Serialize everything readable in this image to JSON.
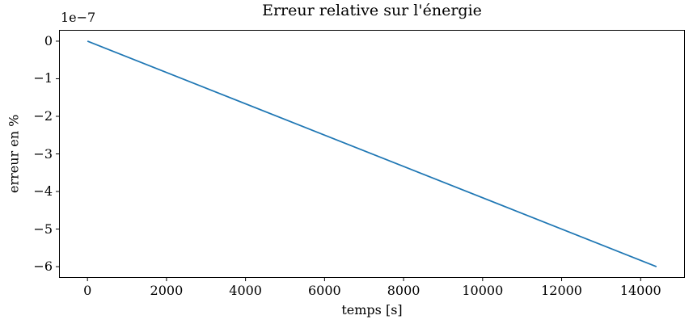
{
  "figure": {
    "background": "#ffffff",
    "text_color": "#000000",
    "spine_color": "#000000"
  },
  "chart_data": {
    "type": "line",
    "title": "Erreur relative sur l'énergie",
    "xlabel": "temps [s]",
    "ylabel": "erreur en %",
    "y_offset_label": "1e−7",
    "y_scale_factor": 1e-07,
    "grid": false,
    "legend": null,
    "xlim": [
      -720,
      15120
    ],
    "ylim": [
      -6.3e-07,
      3e-08
    ],
    "x_ticks": {
      "values": [
        0,
        2000,
        4000,
        6000,
        8000,
        10000,
        12000,
        14000
      ],
      "labels": [
        "0",
        "2000",
        "4000",
        "6000",
        "8000",
        "10000",
        "12000",
        "14000"
      ]
    },
    "y_ticks": {
      "values": [
        0,
        -1e-07,
        -2e-07,
        -3e-07,
        -4e-07,
        -5e-07,
        -6e-07
      ],
      "labels": [
        "0",
        "−1",
        "−2",
        "−3",
        "−4",
        "−5",
        "−6"
      ]
    },
    "series": [
      {
        "color": "#1f77b4",
        "line_width": 1.8,
        "x": [
          0,
          14400
        ],
        "y": [
          0,
          -6e-07
        ]
      }
    ]
  }
}
